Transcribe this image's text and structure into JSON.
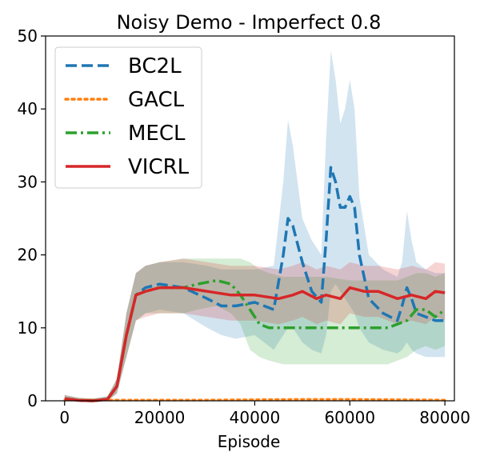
{
  "chart_data": {
    "type": "line",
    "title": "Noisy Demo - Imperfect 0.8",
    "xlabel": "Episode",
    "ylabel": "",
    "xlim": [
      -4000,
      82000
    ],
    "ylim": [
      0,
      50
    ],
    "xticks": [
      0,
      20000,
      40000,
      60000,
      80000
    ],
    "xtick_labels": [
      "0",
      "20000",
      "40000",
      "60000",
      "80000"
    ],
    "yticks": [
      0,
      10,
      20,
      30,
      40,
      50
    ],
    "ytick_labels": [
      "0",
      "10",
      "20",
      "30",
      "40",
      "50"
    ],
    "grid": false,
    "legend_position": "top-left",
    "series": [
      {
        "name": "BC2L",
        "color": "#1f77b4",
        "style": "dashed",
        "x": [
          0,
          3000,
          6000,
          9000,
          11000,
          13000,
          15000,
          17000,
          20000,
          25000,
          30000,
          33000,
          36000,
          40000,
          44000,
          46000,
          47000,
          48000,
          50000,
          52000,
          54000,
          55000,
          56000,
          57000,
          58000,
          59000,
          60000,
          61000,
          62000,
          64000,
          67000,
          70000,
          71000,
          72000,
          73000,
          74000,
          76000,
          78000,
          80000
        ],
        "values": [
          0.3,
          0.05,
          0,
          0.2,
          2,
          9,
          14.5,
          15.5,
          16,
          15.5,
          14,
          13,
          13,
          13.5,
          12.5,
          20,
          25,
          24,
          19,
          15,
          13.5,
          22,
          32,
          30,
          26.5,
          26.5,
          28,
          26.5,
          20,
          14,
          12,
          11,
          13,
          15.5,
          14,
          12,
          11.5,
          11,
          11
        ],
        "upper": [
          0.8,
          0.4,
          0.3,
          0.6,
          3,
          12,
          17.5,
          18.5,
          19,
          19,
          18.5,
          18,
          18,
          18,
          18.5,
          30,
          38.5,
          35,
          25,
          22,
          20,
          36,
          48,
          44,
          38,
          40,
          44,
          40,
          28,
          20,
          18,
          17,
          19,
          26,
          22,
          19,
          18,
          17.5,
          17.5
        ],
        "lower": [
          0,
          0,
          0,
          0,
          1,
          6,
          11,
          12,
          12.5,
          12,
          10,
          9,
          8.5,
          9,
          7,
          9,
          10,
          10,
          8,
          7,
          6.5,
          9,
          15,
          16,
          15,
          14,
          13,
          12,
          10,
          8,
          7,
          6.5,
          7,
          8,
          7,
          6.5,
          6,
          6,
          6
        ]
      },
      {
        "name": "GACL",
        "color": "#ff7f0e",
        "style": "dotted",
        "x": [
          0,
          10000,
          20000,
          30000,
          40000,
          50000,
          60000,
          70000,
          80000
        ],
        "values": [
          0.1,
          0.1,
          0.1,
          0.1,
          0.15,
          0.2,
          0.2,
          0.15,
          0.1
        ],
        "upper": [
          0.3,
          0.3,
          0.3,
          0.3,
          0.35,
          0.4,
          0.4,
          0.35,
          0.3
        ],
        "lower": [
          0,
          0,
          0,
          0,
          0,
          0,
          0,
          0,
          0
        ]
      },
      {
        "name": "MECL",
        "color": "#2ca02c",
        "style": "dashdot",
        "x": [
          0,
          3000,
          6000,
          9000,
          11000,
          13000,
          15000,
          17000,
          20000,
          25000,
          28000,
          32000,
          35000,
          37000,
          39000,
          41000,
          43000,
          46000,
          50000,
          55000,
          60000,
          65000,
          68000,
          70000,
          72000,
          74000,
          76000,
          78000,
          80000
        ],
        "values": [
          0.3,
          0.05,
          0,
          0.2,
          2,
          9,
          14.5,
          15,
          15.5,
          15.5,
          16,
          16.5,
          16,
          14.5,
          12.5,
          10.5,
          10,
          10,
          10,
          10,
          10,
          10,
          10,
          10.5,
          11,
          12.5,
          12.5,
          11.5,
          12.5
        ],
        "upper": [
          0.8,
          0.4,
          0.3,
          0.6,
          3,
          12,
          17.5,
          18.5,
          19,
          19.5,
          19.5,
          19.5,
          19.5,
          19.5,
          19,
          18,
          17.5,
          17,
          17,
          17,
          16.5,
          16.5,
          16.5,
          16.5,
          17,
          17.5,
          17.5,
          17,
          17.5
        ],
        "lower": [
          0,
          0,
          0,
          0,
          1,
          6,
          11,
          12,
          12,
          12,
          12.5,
          13,
          12,
          10.5,
          7,
          6,
          5.5,
          5,
          5,
          5,
          5,
          5,
          5,
          5.5,
          6,
          7,
          7.5,
          7,
          7.5
        ]
      },
      {
        "name": "VICRL",
        "color": "#d62728",
        "style": "solid",
        "x": [
          0,
          3000,
          6000,
          9000,
          11000,
          13000,
          15000,
          17000,
          20000,
          25000,
          30000,
          35000,
          40000,
          45000,
          48000,
          50000,
          53000,
          55000,
          58000,
          60000,
          63000,
          66000,
          70000,
          73000,
          76000,
          78000,
          80000
        ],
        "values": [
          0.3,
          0.05,
          0,
          0.2,
          2,
          9,
          14.5,
          15,
          15.5,
          15.5,
          15,
          14.5,
          14.5,
          14,
          14.5,
          15,
          14,
          14.5,
          14,
          15.5,
          15,
          15,
          14,
          14.5,
          14,
          15,
          14.8
        ],
        "upper": [
          0.8,
          0.4,
          0.3,
          0.6,
          3,
          12,
          17.5,
          18.5,
          19,
          19.5,
          19,
          18.5,
          18.5,
          18,
          18.5,
          19,
          18,
          18.5,
          18,
          19,
          18.5,
          18.5,
          18,
          18.5,
          18,
          19,
          18.8
        ],
        "lower": [
          0,
          0,
          0,
          0,
          1,
          6,
          11,
          11.5,
          12,
          12,
          11.5,
          11,
          11,
          10.5,
          11,
          11.5,
          10.5,
          11,
          10.5,
          12,
          11.5,
          11.5,
          10.5,
          11,
          10.5,
          11.5,
          11
        ]
      }
    ]
  }
}
